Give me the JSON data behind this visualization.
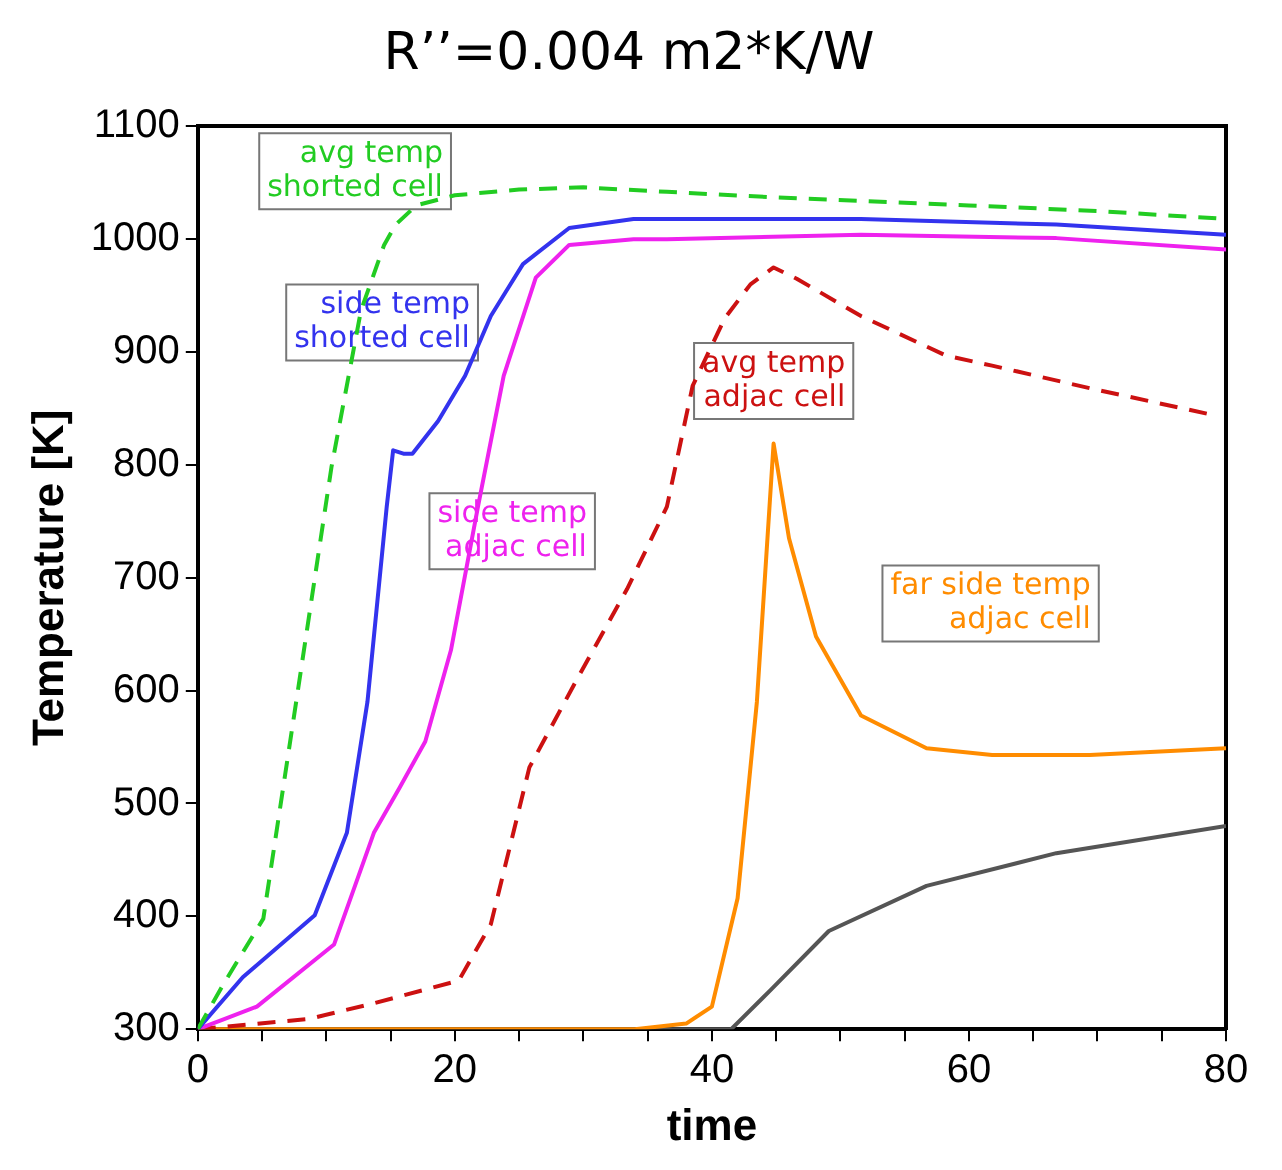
{
  "chart_data": {
    "type": "line",
    "title": "R’’=0.004 m2*K/W",
    "xlabel": "time",
    "ylabel": "Temperature [K]",
    "xlim": [
      0,
      80
    ],
    "xticks": [
      0,
      {
        "value": 5,
        "label": null
      },
      {
        "value": 10,
        "label": null
      },
      {
        "value": 15,
        "label": null
      },
      20,
      {
        "value": 25,
        "label": null
      },
      {
        "value": 30,
        "label": null
      },
      {
        "value": 35,
        "label": null
      },
      40,
      {
        "value": 45,
        "label": null
      },
      {
        "value": 50,
        "label": null
      },
      {
        "value": 55,
        "label": null
      },
      60,
      {
        "value": 65,
        "label": null
      },
      {
        "value": 70,
        "label": null
      },
      {
        "value": 75,
        "label": null
      },
      80
    ],
    "ylim": [
      300,
      1100
    ],
    "yticks": [
      300,
      400,
      500,
      600,
      700,
      800,
      900,
      1000,
      1100
    ],
    "legend": false,
    "marker": "none",
    "series": [
      {
        "name": "avg temp\nshorted cell",
        "color": "#22cc22",
        "line_style": "dashed",
        "x": [
          0,
          2,
          5.1,
          7.8,
          10.4,
          12.7,
          14.5,
          15.4,
          17,
          20,
          25,
          30,
          36.5,
          45,
          60,
          70,
          80
        ],
        "values": [
          300,
          340,
          398,
          601,
          798,
          937,
          995,
          1013,
          1030,
          1039,
          1044,
          1046,
          1042,
          1037,
          1030,
          1025,
          1018
        ]
      },
      {
        "name": "side temp\nshorted cell",
        "color": "#3333ee",
        "line_style": "solid",
        "x": [
          0,
          3.5,
          9.1,
          11.6,
          13.2,
          14.7,
          15.2,
          16,
          16.7,
          18.7,
          20.8,
          22.8,
          25.3,
          28.9,
          33.9,
          36.5,
          51.6,
          66.8,
          80
        ],
        "values": [
          300,
          346,
          401,
          474,
          590,
          763,
          813,
          810,
          810,
          839,
          879,
          932,
          978,
          1010,
          1018,
          1018,
          1018,
          1013,
          1004
        ]
      },
      {
        "name": "side temp\nadjac cell",
        "color": "#ee22ee",
        "line_style": "solid",
        "x": [
          0,
          4.6,
          10.6,
          13.7,
          15.7,
          17.7,
          19.7,
          21.8,
          23.8,
          26.3,
          28.9,
          33.9,
          36.5,
          51.6,
          66.8,
          80
        ],
        "values": [
          300,
          320,
          375,
          474,
          514,
          555,
          636,
          763,
          879,
          966,
          995,
          1000,
          1000,
          1004,
          1001,
          991
        ]
      },
      {
        "name": "avg temp\nadjac cell",
        "color": "#cc1111",
        "line_style": "dashed",
        "x": [
          0,
          8.6,
          13.7,
          20.3,
          22.8,
          25.8,
          29.5,
          33.4,
          36.5,
          38.5,
          41,
          43,
          44.8,
          46.6,
          51.6,
          58.2,
          61.8,
          69.4,
          78.7
        ],
        "values": [
          300,
          309,
          323,
          343,
          393,
          532,
          610,
          690,
          763,
          870,
          930,
          960,
          975,
          965,
          932,
          897,
          888,
          868,
          845
        ]
      },
      {
        "name": "far side temp\nadjac cell",
        "color": "#ff8c00",
        "line_style": "solid",
        "x": [
          0,
          34,
          38,
          40,
          42,
          43.5,
          44.8,
          46,
          48.1,
          51.6,
          56.7,
          61.8,
          69.4,
          80
        ],
        "values": [
          300,
          300,
          305,
          320,
          416,
          590,
          819,
          735,
          648,
          578,
          549,
          543,
          543,
          549
        ]
      },
      {
        "color": "#555555",
        "line_style": "solid",
        "x": [
          0,
          40,
          41.5,
          44.6,
          49.1,
          56.7,
          66.8,
          80
        ],
        "values": [
          300,
          300,
          300,
          335,
          387,
          427,
          456,
          480
        ]
      }
    ]
  }
}
